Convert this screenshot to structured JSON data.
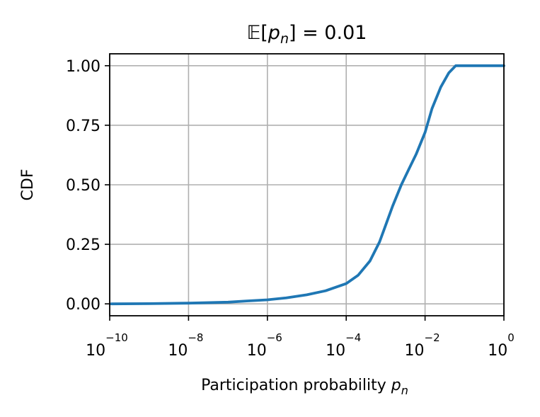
{
  "chart_data": {
    "type": "line",
    "title_parts": {
      "prefix": "𝔼[",
      "var": "p",
      "sub": "n",
      "suffix": "] = 0.01"
    },
    "xlabel_parts": {
      "text": "Participation probability ",
      "var": "p",
      "sub": "n"
    },
    "ylabel": "CDF",
    "xscale": "log",
    "xlim": [
      1e-10,
      1
    ],
    "ylim": [
      -0.05,
      1.05
    ],
    "x_ticks": [
      {
        "base": "10",
        "exp": "−10",
        "value": 1e-10
      },
      {
        "base": "10",
        "exp": "−8",
        "value": 1e-08
      },
      {
        "base": "10",
        "exp": "−6",
        "value": 1e-06
      },
      {
        "base": "10",
        "exp": "−4",
        "value": 0.0001
      },
      {
        "base": "10",
        "exp": "−2",
        "value": 0.01
      },
      {
        "base": "10",
        "exp": "0",
        "value": 1
      }
    ],
    "y_ticks": [
      {
        "label": "0.00",
        "value": 0
      },
      {
        "label": "0.25",
        "value": 0.25
      },
      {
        "label": "0.50",
        "value": 0.5
      },
      {
        "label": "0.75",
        "value": 0.75
      },
      {
        "label": "1.00",
        "value": 1
      }
    ],
    "grid": true,
    "series": [
      {
        "color": "#1f77b4",
        "x": [
          1.1e-10,
          1e-09,
          1e-08,
          1e-07,
          3e-07,
          1e-06,
          3e-06,
          1e-05,
          3e-05,
          0.0001,
          0.0002,
          0.0004,
          0.0007,
          0.001,
          0.0015,
          0.0025,
          0.004,
          0.006,
          0.01,
          0.015,
          0.025,
          0.04,
          0.06,
          1
        ],
        "y": [
          0.0,
          0.001,
          0.003,
          0.007,
          0.012,
          0.017,
          0.025,
          0.038,
          0.055,
          0.085,
          0.12,
          0.18,
          0.26,
          0.33,
          0.41,
          0.5,
          0.57,
          0.63,
          0.72,
          0.82,
          0.91,
          0.97,
          1.0,
          1.0
        ]
      }
    ]
  }
}
